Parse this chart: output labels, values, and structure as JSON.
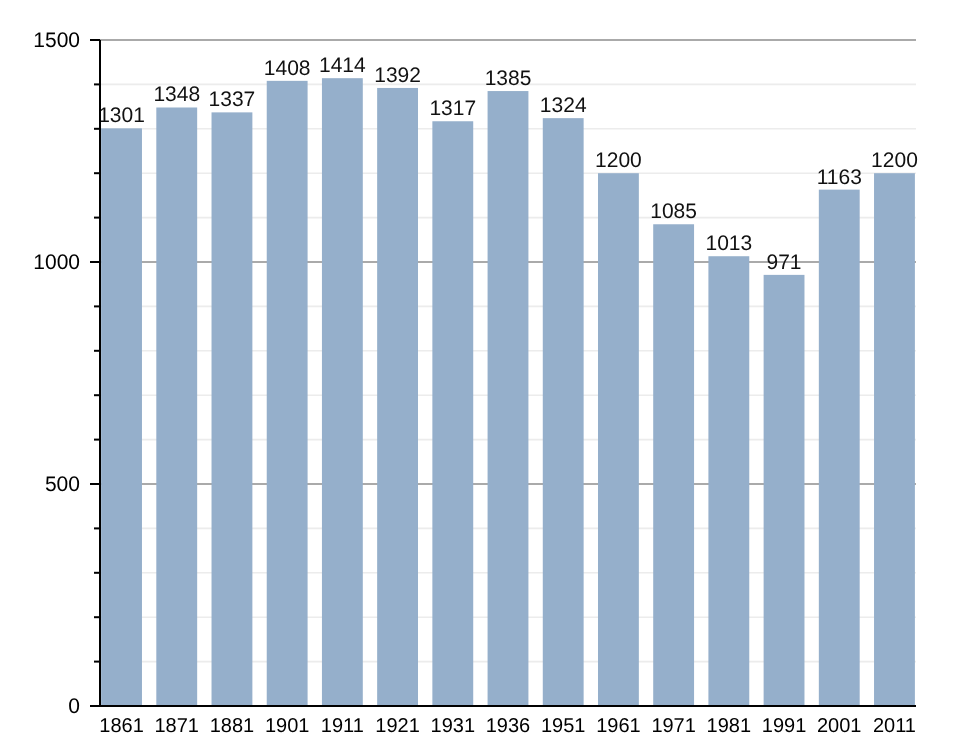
{
  "chart_data": {
    "type": "bar",
    "categories": [
      "1861",
      "1871",
      "1881",
      "1901",
      "1911",
      "1921",
      "1931",
      "1936",
      "1951",
      "1961",
      "1971",
      "1981",
      "1991",
      "2001",
      "2011"
    ],
    "values": [
      1301,
      1348,
      1337,
      1408,
      1414,
      1392,
      1317,
      1385,
      1324,
      1200,
      1085,
      1013,
      971,
      1163,
      1200
    ],
    "color": "#95afcb",
    "ylim": [
      0,
      1500
    ],
    "yticks": [
      0,
      {
        "value": 100,
        "label": null
      },
      {
        "value": 200,
        "label": null
      },
      {
        "value": 300,
        "label": null
      },
      {
        "value": 400,
        "label": null
      },
      500,
      {
        "value": 600,
        "label": null
      },
      {
        "value": 700,
        "label": null
      },
      {
        "value": 800,
        "label": null
      },
      {
        "value": 900,
        "label": null
      },
      1000,
      {
        "value": 1100,
        "label": null
      },
      {
        "value": 1200,
        "label": null
      },
      {
        "value": 1300,
        "label": null
      },
      {
        "value": 1400,
        "label": null
      },
      1500
    ],
    "grid": true,
    "data_labels": true
  }
}
